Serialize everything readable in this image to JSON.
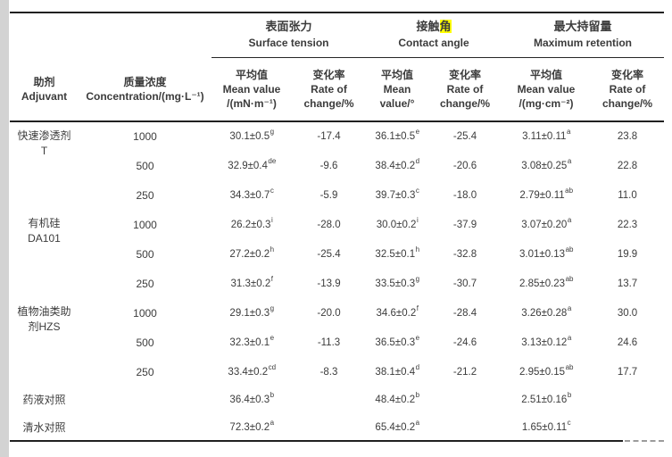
{
  "table": {
    "groups": [
      {
        "zh": "表面张力",
        "en": "Surface tension"
      },
      {
        "zh_prefix": "接触",
        "zh_highlight": "角",
        "en": "Contact angle",
        "highlight_color": "#ffff00"
      },
      {
        "zh": "最大持留量",
        "en": "Maximum retention"
      }
    ],
    "columns": [
      {
        "lines": [
          "助剂",
          "Adjuvant"
        ]
      },
      {
        "lines": [
          "质量浓度",
          "Concentration/(mg·L⁻¹)"
        ]
      },
      {
        "lines": [
          "平均值",
          "Mean value",
          "/(mN·m⁻¹)"
        ]
      },
      {
        "lines": [
          "变化率",
          "Rate of",
          "change/%"
        ]
      },
      {
        "lines": [
          "平均值",
          "Mean",
          "value/°"
        ]
      },
      {
        "lines": [
          "变化率",
          "Rate of",
          "change/%"
        ]
      },
      {
        "lines": [
          "平均值",
          "Mean value",
          "/(mg·cm⁻²)"
        ]
      },
      {
        "lines": [
          "变化率",
          "Rate of",
          "change/%"
        ]
      }
    ],
    "body": [
      {
        "adjuvant": [
          "快速渗透剂",
          "T"
        ],
        "span": 3,
        "conc": "1000",
        "cells": [
          {
            "v": "30.1±0.5",
            "s": "g"
          },
          {
            "v": "-17.4"
          },
          {
            "v": "36.1±0.5",
            "s": "e"
          },
          {
            "v": "-25.4"
          },
          {
            "v": "3.11±0.11",
            "s": "a"
          },
          {
            "v": "23.8"
          }
        ]
      },
      {
        "conc": "500",
        "cells": [
          {
            "v": "32.9±0.4",
            "s": "de"
          },
          {
            "v": "-9.6"
          },
          {
            "v": "38.4±0.2",
            "s": "d"
          },
          {
            "v": "-20.6"
          },
          {
            "v": "3.08±0.25",
            "s": "a"
          },
          {
            "v": "22.8"
          }
        ]
      },
      {
        "conc": "250",
        "cells": [
          {
            "v": "34.3±0.7",
            "s": "c"
          },
          {
            "v": "-5.9"
          },
          {
            "v": "39.7±0.3",
            "s": "c"
          },
          {
            "v": "-18.0"
          },
          {
            "v": "2.79±0.11",
            "s": "ab"
          },
          {
            "v": "11.0"
          }
        ]
      },
      {
        "adjuvant": [
          "有机硅",
          "DA101"
        ],
        "span": 3,
        "conc": "1000",
        "cells": [
          {
            "v": "26.2±0.3",
            "s": "i"
          },
          {
            "v": "-28.0"
          },
          {
            "v": "30.0±0.2",
            "s": "i"
          },
          {
            "v": "-37.9"
          },
          {
            "v": "3.07±0.20",
            "s": "a"
          },
          {
            "v": "22.3"
          }
        ]
      },
      {
        "conc": "500",
        "cells": [
          {
            "v": "27.2±0.2",
            "s": "h"
          },
          {
            "v": "-25.4"
          },
          {
            "v": "32.5±0.1",
            "s": "h"
          },
          {
            "v": "-32.8"
          },
          {
            "v": "3.01±0.13",
            "s": "ab"
          },
          {
            "v": "19.9"
          }
        ]
      },
      {
        "conc": "250",
        "cells": [
          {
            "v": "31.3±0.2",
            "s": "f"
          },
          {
            "v": "-13.9"
          },
          {
            "v": "33.5±0.3",
            "s": "g"
          },
          {
            "v": "-30.7"
          },
          {
            "v": "2.85±0.23",
            "s": "ab"
          },
          {
            "v": "13.7"
          }
        ]
      },
      {
        "adjuvant": [
          "植物油类助",
          "剂HZS"
        ],
        "span": 3,
        "conc": "1000",
        "cells": [
          {
            "v": "29.1±0.3",
            "s": "g"
          },
          {
            "v": "-20.0"
          },
          {
            "v": "34.6±0.2",
            "s": "f"
          },
          {
            "v": "-28.4"
          },
          {
            "v": "3.26±0.28",
            "s": "a"
          },
          {
            "v": "30.0"
          }
        ]
      },
      {
        "conc": "500",
        "cells": [
          {
            "v": "32.3±0.1",
            "s": "e"
          },
          {
            "v": "-11.3"
          },
          {
            "v": "36.5±0.3",
            "s": "e"
          },
          {
            "v": "-24.6"
          },
          {
            "v": "3.13±0.12",
            "s": "a"
          },
          {
            "v": "24.6"
          }
        ]
      },
      {
        "conc": "250",
        "cells": [
          {
            "v": "33.4±0.2",
            "s": "cd"
          },
          {
            "v": "-8.3"
          },
          {
            "v": "38.1±0.4",
            "s": "d"
          },
          {
            "v": "-21.2"
          },
          {
            "v": "2.95±0.15",
            "s": "ab"
          },
          {
            "v": "17.7"
          }
        ]
      },
      {
        "adjuvant": [
          "药液对照"
        ],
        "control": true,
        "conc": "",
        "cells": [
          {
            "v": "36.4±0.3",
            "s": "b"
          },
          {
            "v": ""
          },
          {
            "v": "48.4±0.2",
            "s": "b"
          },
          {
            "v": ""
          },
          {
            "v": "2.51±0.16",
            "s": "b"
          },
          {
            "v": ""
          }
        ]
      },
      {
        "adjuvant": [
          "清水对照"
        ],
        "control": true,
        "conc": "",
        "cells": [
          {
            "v": "72.3±0.2",
            "s": "a"
          },
          {
            "v": ""
          },
          {
            "v": "65.4±0.2",
            "s": "a"
          },
          {
            "v": ""
          },
          {
            "v": "1.65±0.11",
            "s": "c"
          },
          {
            "v": ""
          }
        ]
      }
    ]
  }
}
